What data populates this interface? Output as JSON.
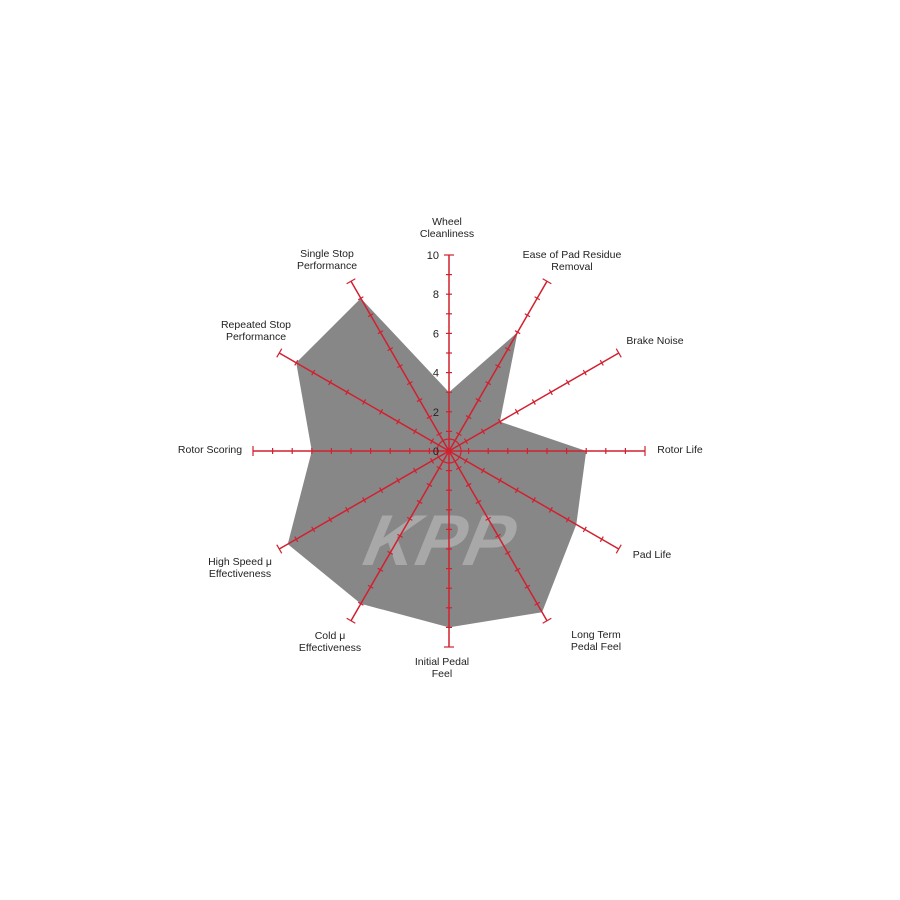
{
  "chart_data": {
    "type": "radar",
    "categories": [
      "Wheel Cleanliness",
      "Ease of Pad Residue Removal",
      "Brake Noise",
      "Rotor Life",
      "Pad Life",
      "Long Term Pedal Feel",
      "Initial Pedal Feel",
      "Cold μ Effectiveness",
      "High Speed μ Effectiveness",
      "Rotor Scoring",
      "Repeated Stop Performance",
      "Single Stop Performance"
    ],
    "category_labels": [
      "Wheel\nCleanliness",
      "Ease of Pad Residue\nRemoval",
      "Brake Noise",
      "Rotor Life",
      "Pad Life",
      "Long Term\nPedal Feel",
      "Initial Pedal\nFeel",
      "Cold μ\nEffectiveness",
      "High Speed μ\nEffectiveness",
      "Rotor Scoring",
      "Repeated Stop\nPerformance",
      "Single Stop\nPerformance"
    ],
    "values": [
      3,
      7,
      3,
      7,
      7.5,
      9.5,
      9,
      9,
      9.5,
      7,
      9,
      9
    ],
    "range": [
      0,
      10
    ],
    "tick_labels": [
      "0",
      "2",
      "4",
      "6",
      "8",
      "10"
    ],
    "colors": {
      "fill": "#878787",
      "axis": "#d1202f",
      "watermark": "#a8a8a8"
    },
    "watermark": "KPP"
  }
}
